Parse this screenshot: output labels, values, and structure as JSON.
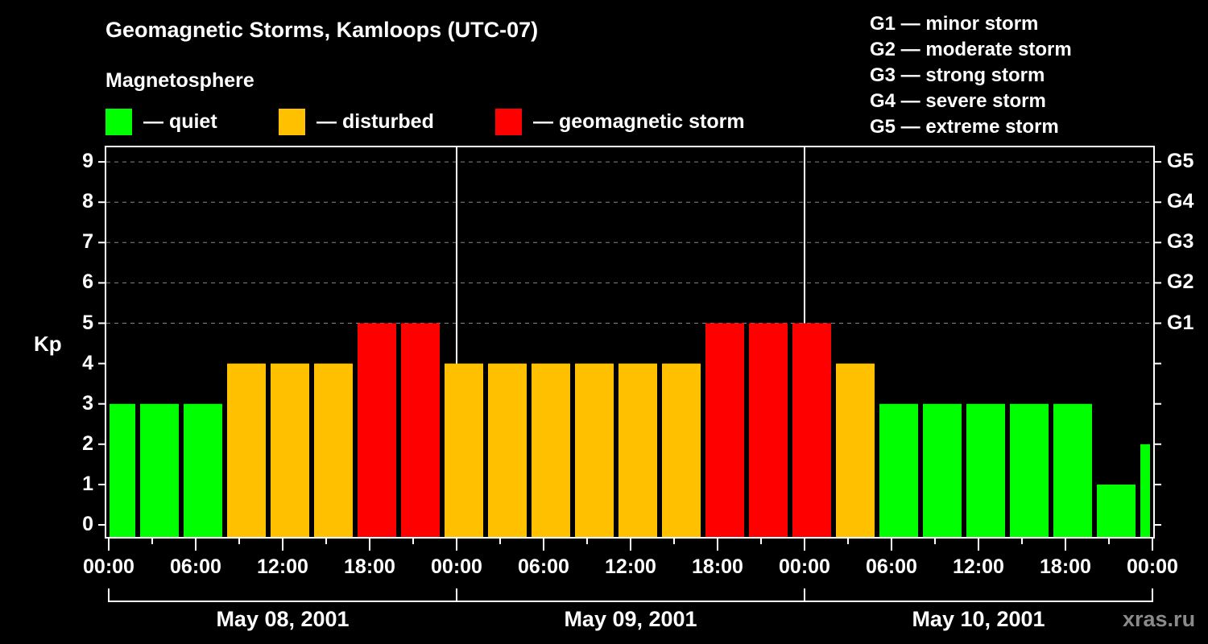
{
  "header": {
    "title": "Geomagnetic Storms, Kamloops (UTC-07)",
    "subtitle": "Magnetosphere"
  },
  "legend": [
    {
      "label": "— quiet",
      "color": "#00ff00"
    },
    {
      "label": "— disturbed",
      "color": "#ffc000"
    },
    {
      "label": "— geomagnetic storm",
      "color": "#ff0000"
    }
  ],
  "g_legend": [
    "G1 — minor storm",
    "G2 — moderate storm",
    "G3 — strong storm",
    "G4 — severe storm",
    "G5 — extreme storm"
  ],
  "watermark": "xras.ru",
  "chart_data": {
    "type": "bar",
    "title": "Geomagnetic Storms, Kamloops (UTC-07)",
    "subtitle": "Magnetosphere",
    "ylabel": "Kp",
    "ylim": [
      0,
      9
    ],
    "yticks": [
      0,
      1,
      2,
      3,
      4,
      5,
      6,
      7,
      8,
      9
    ],
    "right_axis_labels": [
      {
        "kp": 5,
        "label": "G1"
      },
      {
        "kp": 6,
        "label": "G2"
      },
      {
        "kp": 7,
        "label": "G3"
      },
      {
        "kp": 8,
        "label": "G4"
      },
      {
        "kp": 9,
        "label": "G5"
      }
    ],
    "grid": "dashed horizontal at Kp 5-9",
    "xtick_labels": [
      "00:00",
      "06:00",
      "12:00",
      "18:00",
      "00:00",
      "06:00",
      "12:00",
      "18:00",
      "00:00",
      "06:00",
      "12:00",
      "18:00",
      "00:00"
    ],
    "dates": [
      "May 08, 2001",
      "May 09, 2001",
      "May 10, 2001"
    ],
    "bar_interval_hours": 3,
    "first_bar_start_hour": -1,
    "categories": [
      "-01:00",
      "02:00",
      "05:00",
      "08:00",
      "11:00",
      "14:00",
      "17:00",
      "20:00",
      "23:00",
      "02:00",
      "05:00",
      "08:00",
      "11:00",
      "14:00",
      "17:00",
      "20:00",
      "23:00",
      "02:00",
      "05:00",
      "08:00",
      "11:00",
      "14:00",
      "17:00",
      "20:00",
      "23:00"
    ],
    "values": [
      3,
      3,
      3,
      4,
      4,
      4,
      5,
      5,
      4,
      4,
      4,
      4,
      4,
      4,
      5,
      5,
      5,
      4,
      3,
      3,
      3,
      3,
      3,
      1,
      2
    ],
    "color_scale": {
      "quiet": "#00ff00 (Kp<4)",
      "disturbed": "#ffc000 (Kp=4)",
      "storm": "#ff0000 (Kp>=5)"
    }
  }
}
